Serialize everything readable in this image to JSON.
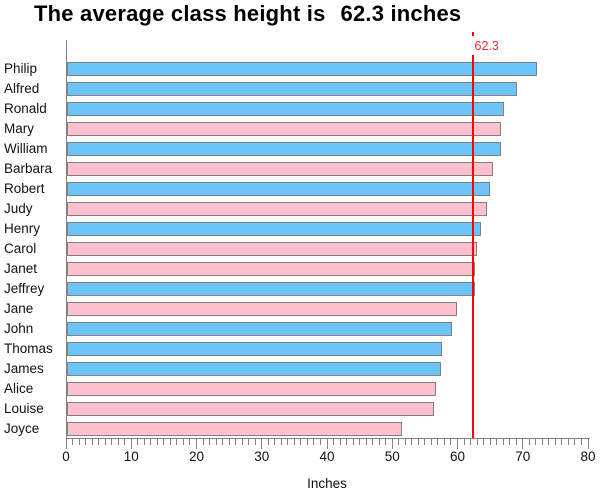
{
  "header": {
    "title_prefix": "The average class height is",
    "title_value": "62.3 inches"
  },
  "x_axis": {
    "label": "Inches",
    "min": 0,
    "max": 80,
    "major_step": 10,
    "minor_step": 1,
    "tick_labels": [
      "0",
      "10",
      "20",
      "30",
      "40",
      "50",
      "60",
      "70",
      "80"
    ]
  },
  "refline": {
    "value": 62.3,
    "label": "62.3",
    "color": "#ff0000"
  },
  "colors": {
    "male_bar": "#6cc4fa",
    "female_bar": "#ffc0cd",
    "bar_border": "#808080",
    "axis": "#828282",
    "refline": "#ff0000",
    "refline_label": "#e03030"
  },
  "chart_data": {
    "type": "bar",
    "orientation": "horizontal",
    "title": "The average class height is      62.3 inches",
    "xlabel": "Inches",
    "xlim": [
      0,
      80
    ],
    "grid": false,
    "legend": "none",
    "refline": 62.3,
    "categories": [
      "Philip",
      "Alfred",
      "Ronald",
      "Mary",
      "William",
      "Barbara",
      "Robert",
      "Judy",
      "Henry",
      "Carol",
      "Janet",
      "Jeffrey",
      "Jane",
      "John",
      "Thomas",
      "James",
      "Alice",
      "Louise",
      "Joyce"
    ],
    "values": [
      72.0,
      69.0,
      67.0,
      66.5,
      66.5,
      65.3,
      64.8,
      64.3,
      63.5,
      62.8,
      62.5,
      62.5,
      59.8,
      59.0,
      57.5,
      57.3,
      56.5,
      56.3,
      51.3
    ],
    "groups": [
      "M",
      "M",
      "M",
      "F",
      "M",
      "F",
      "M",
      "F",
      "M",
      "F",
      "F",
      "M",
      "F",
      "M",
      "M",
      "M",
      "F",
      "F",
      "F"
    ],
    "group_colors": {
      "M": "#6cc4fa",
      "F": "#ffc0cd"
    }
  }
}
